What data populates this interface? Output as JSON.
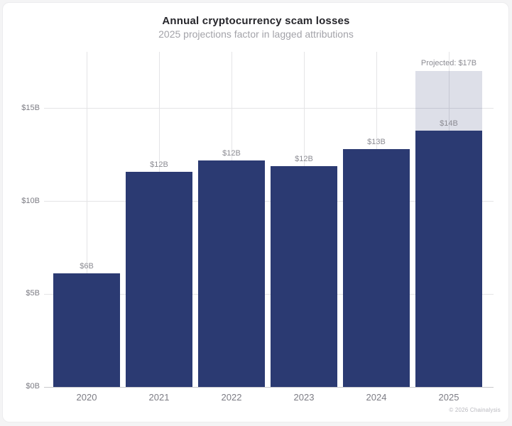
{
  "chart_data": {
    "type": "bar",
    "title": "Annual cryptocurrency scam losses",
    "subtitle": "2025 projections factor in lagged attributions",
    "categories": [
      "2020",
      "2021",
      "2022",
      "2023",
      "2024",
      "2025"
    ],
    "values": [
      6.1,
      11.6,
      12.2,
      11.9,
      12.8,
      13.8
    ],
    "bar_labels": [
      "$6B",
      "$12B",
      "$12B",
      "$12B",
      "$13B",
      "$14B"
    ],
    "projected": {
      "category": "2025",
      "total": 17,
      "label": "Projected: $17B"
    },
    "ytick_values": [
      0,
      5,
      10,
      15
    ],
    "ytick_labels": [
      "$0B",
      "$5B",
      "$10B",
      "$15B"
    ],
    "ylim": [
      0,
      18.05
    ],
    "xlabel": "",
    "ylabel": "",
    "grid": "light gray horizontal and vertical gridlines behind bars",
    "legend": false
  },
  "footer": {
    "credit": "© 2026 Chainalysis"
  },
  "colors": {
    "bar": "#2b3a72",
    "projected_fill": "rgba(43,58,114,0.16)",
    "grid": "#e4e4e6",
    "baseline": "#c9c9cd",
    "title": "#26262b",
    "subtitle": "#a3a3a9",
    "value_label": "#8c8c93",
    "tick_label": "#7c7c84",
    "credit": "#b9b9bf"
  }
}
